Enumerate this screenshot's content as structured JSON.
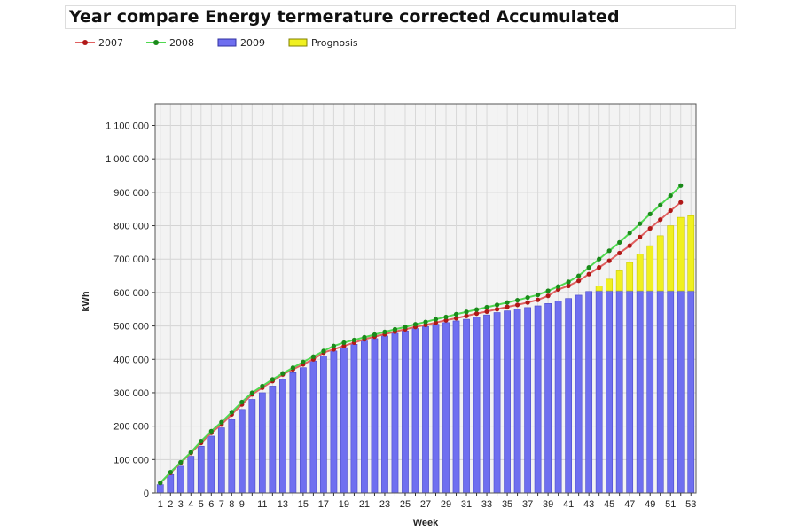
{
  "title": "Year compare Energy termerature corrected Accumulated",
  "chart_data": {
    "type": "bar",
    "title": "Year compare Energy termerature corrected Accumulated",
    "xlabel": "Week",
    "ylabel": "kWh",
    "ylim": [
      0,
      1165000
    ],
    "yticks": [
      0,
      100000,
      200000,
      300000,
      400000,
      500000,
      600000,
      700000,
      800000,
      900000,
      1000000,
      1100000
    ],
    "ytick_labels": [
      "0",
      "100 000",
      "200 000",
      "300 000",
      "400 000",
      "500 000",
      "600 000",
      "700 000",
      "800 000",
      "900 000",
      "1 000 000",
      "1 100 000"
    ],
    "categories": [
      1,
      2,
      3,
      4,
      5,
      6,
      7,
      8,
      9,
      10,
      11,
      12,
      13,
      14,
      15,
      16,
      17,
      18,
      19,
      20,
      21,
      22,
      23,
      24,
      25,
      26,
      27,
      28,
      29,
      30,
      31,
      32,
      33,
      34,
      35,
      36,
      37,
      38,
      39,
      40,
      41,
      42,
      43,
      44,
      45,
      46,
      47,
      48,
      49,
      50,
      51,
      52,
      53
    ],
    "xtick_labels": [
      "1",
      "2",
      "3",
      "4",
      "5",
      "6",
      "7",
      "8",
      "9",
      "11",
      "13",
      "15",
      "17",
      "19",
      "21",
      "23",
      "25",
      "27",
      "29",
      "31",
      "33",
      "35",
      "37",
      "39",
      "41",
      "43",
      "45",
      "47",
      "49",
      "51",
      "53"
    ],
    "grid": true,
    "legend": "top-left",
    "series": [
      {
        "name": "2007",
        "kind": "line",
        "color": "#b01818",
        "line_color": "#e06060",
        "values": [
          30000,
          60000,
          90000,
          120000,
          150000,
          180000,
          205000,
          235000,
          265000,
          295000,
          315000,
          335000,
          355000,
          370000,
          385000,
          400000,
          420000,
          430000,
          440000,
          450000,
          460000,
          468000,
          475000,
          483000,
          490000,
          497000,
          503000,
          510000,
          517000,
          523000,
          530000,
          537000,
          543000,
          550000,
          557000,
          563000,
          570000,
          578000,
          590000,
          609000,
          620000,
          635000,
          655000,
          675000,
          695000,
          718000,
          740000,
          766000,
          792000,
          818000,
          845000,
          870000,
          null
        ]
      },
      {
        "name": "2008",
        "kind": "line",
        "color": "#1a8a1a",
        "line_color": "#50d850",
        "values": [
          30000,
          62000,
          92000,
          122000,
          155000,
          185000,
          212000,
          242000,
          272000,
          300000,
          320000,
          340000,
          358000,
          375000,
          392000,
          408000,
          425000,
          440000,
          450000,
          458000,
          466000,
          474000,
          482000,
          490000,
          497000,
          505000,
          512000,
          520000,
          527000,
          535000,
          542000,
          549000,
          556000,
          563000,
          570000,
          577000,
          585000,
          593000,
          605000,
          618000,
          632000,
          650000,
          675000,
          700000,
          725000,
          750000,
          778000,
          806000,
          835000,
          862000,
          890000,
          920000,
          null
        ]
      },
      {
        "name": "2009",
        "kind": "bar",
        "color": "#6f6ff0",
        "values": [
          25000,
          55000,
          80000,
          110000,
          140000,
          170000,
          195000,
          220000,
          250000,
          280000,
          300000,
          320000,
          340000,
          360000,
          375000,
          395000,
          410000,
          425000,
          435000,
          445000,
          455000,
          462000,
          470000,
          478000,
          485000,
          492000,
          498000,
          505000,
          510000,
          515000,
          520000,
          527000,
          533000,
          540000,
          545000,
          550000,
          555000,
          560000,
          567000,
          575000,
          582000,
          592000,
          603000,
          605000,
          605000,
          605000,
          605000,
          605000,
          605000,
          605000,
          605000,
          605000,
          605000
        ]
      },
      {
        "name": "Prognosis",
        "kind": "bar",
        "stacked": true,
        "color": "#f0f020",
        "values": [
          0,
          0,
          0,
          0,
          0,
          0,
          0,
          0,
          0,
          0,
          0,
          0,
          0,
          0,
          0,
          0,
          0,
          0,
          0,
          0,
          0,
          0,
          0,
          0,
          0,
          0,
          0,
          0,
          0,
          0,
          0,
          0,
          0,
          0,
          0,
          0,
          0,
          0,
          0,
          0,
          0,
          0,
          0,
          15000,
          35000,
          60000,
          85000,
          110000,
          135000,
          165000,
          195000,
          220000,
          225000
        ]
      }
    ]
  }
}
